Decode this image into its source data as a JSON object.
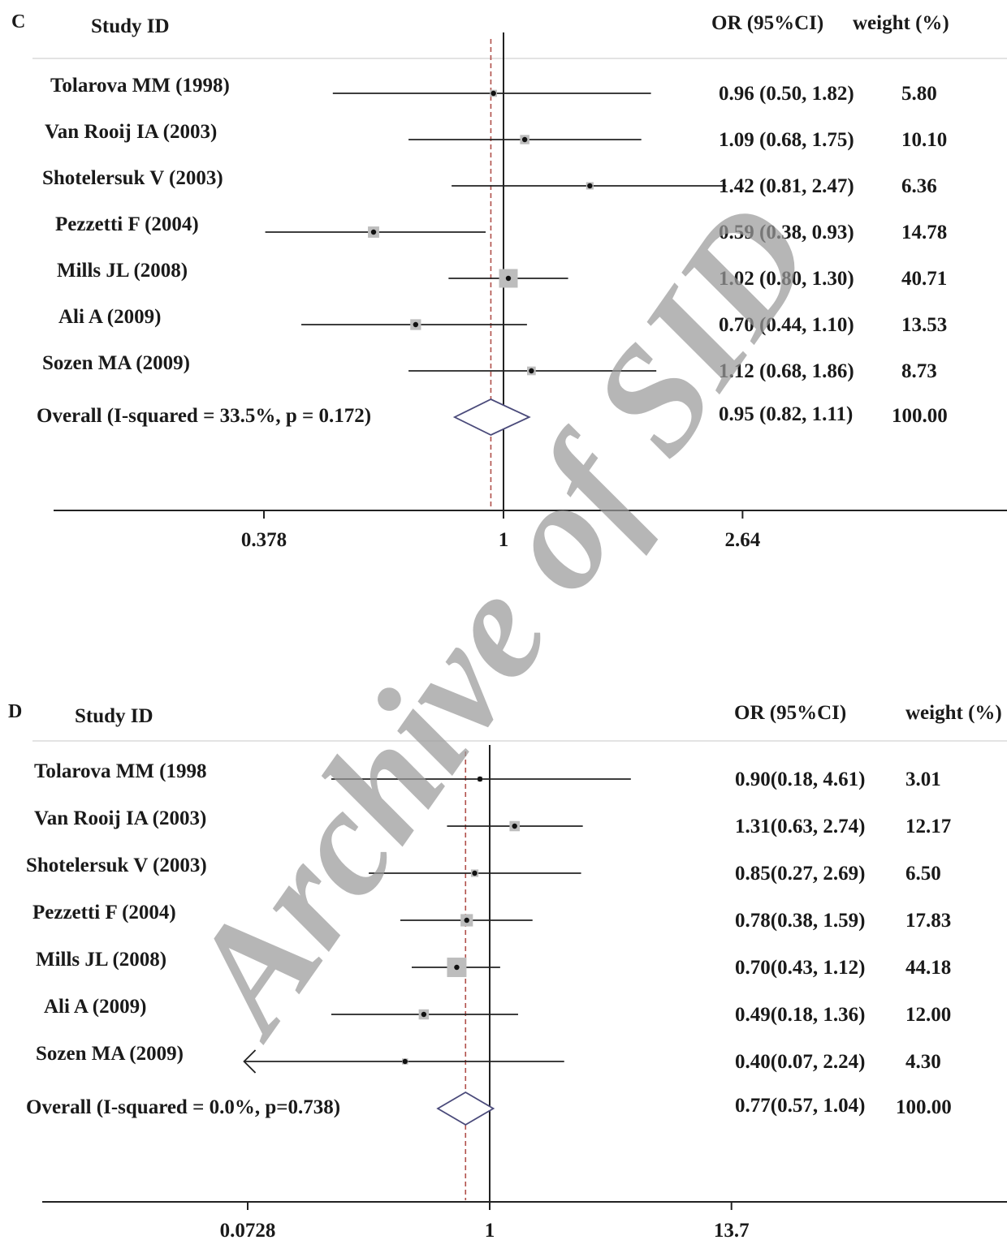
{
  "watermark": "Archive of SID",
  "chart_data": [
    {
      "type": "forest",
      "panel": "C",
      "headers": {
        "study": "Study ID",
        "or": "OR (95%CI)",
        "weight": "weight (%)"
      },
      "xscale": "log",
      "x_ticks": [
        {
          "value": 0.378,
          "label": "0.378"
        },
        {
          "value": 1,
          "label": "1"
        },
        {
          "value": 2.64,
          "label": "2.64"
        }
      ],
      "reference_line": 1,
      "pooled_line": 0.95,
      "rows": [
        {
          "study": "Tolarova MM (1998)",
          "or": 0.96,
          "lo": 0.5,
          "hi": 1.82,
          "or_text": "0.96 (0.50, 1.82)",
          "weight": "5.80"
        },
        {
          "study": "Van Rooij IA (2003)",
          "or": 1.09,
          "lo": 0.68,
          "hi": 1.75,
          "or_text": "1.09 (0.68, 1.75)",
          "weight": "10.10"
        },
        {
          "study": "Shotelersuk V (2003)",
          "or": 1.42,
          "lo": 0.81,
          "hi": 2.47,
          "or_text": "1.42 (0.81, 2.47)",
          "weight": "6.36"
        },
        {
          "study": "Pezzetti F (2004)",
          "or": 0.59,
          "lo": 0.38,
          "hi": 0.93,
          "or_text": "0.59 (0.38, 0.93)",
          "weight": "14.78"
        },
        {
          "study": "Mills JL (2008)",
          "or": 1.02,
          "lo": 0.8,
          "hi": 1.3,
          "or_text": "1.02 (0.80, 1.30)",
          "weight": "40.71"
        },
        {
          "study": "Ali A (2009)",
          "or": 0.7,
          "lo": 0.44,
          "hi": 1.1,
          "or_text": "0.70 (0.44, 1.10)",
          "weight": "13.53"
        },
        {
          "study": "Sozen MA (2009)",
          "or": 1.12,
          "lo": 0.68,
          "hi": 1.86,
          "or_text": "1.12 (0.68, 1.86)",
          "weight": "8.73"
        }
      ],
      "overall": {
        "label": "Overall (I-squared = 33.5%, p = 0.172)",
        "or": 0.95,
        "lo": 0.82,
        "hi": 1.11,
        "or_text": "0.95 (0.82, 1.11)",
        "weight": "100.00"
      }
    },
    {
      "type": "forest",
      "panel": "D",
      "headers": {
        "study": "Study ID",
        "or": "OR (95%CI)",
        "weight": "weight (%)"
      },
      "xscale": "log",
      "x_ticks": [
        {
          "value": 0.0728,
          "label": "0.0728"
        },
        {
          "value": 1,
          "label": "1"
        },
        {
          "value": 13.7,
          "label": "13.7"
        }
      ],
      "reference_line": 1,
      "pooled_line": 0.77,
      "rows": [
        {
          "study": "Tolarova MM (1998",
          "or": 0.9,
          "lo": 0.18,
          "hi": 4.61,
          "or_text": "0.90(0.18, 4.61)",
          "weight": "3.01"
        },
        {
          "study": "Van Rooij IA (2003)",
          "or": 1.31,
          "lo": 0.63,
          "hi": 2.74,
          "or_text": "1.31(0.63, 2.74)",
          "weight": "12.17"
        },
        {
          "study": "Shotelersuk V (2003)",
          "or": 0.85,
          "lo": 0.27,
          "hi": 2.69,
          "or_text": "0.85(0.27, 2.69)",
          "weight": "6.50"
        },
        {
          "study": "Pezzetti F (2004)",
          "or": 0.78,
          "lo": 0.38,
          "hi": 1.59,
          "or_text": "0.78(0.38, 1.59)",
          "weight": "17.83"
        },
        {
          "study": "Mills JL (2008)",
          "or": 0.7,
          "lo": 0.43,
          "hi": 1.12,
          "or_text": "0.70(0.43, 1.12)",
          "weight": "44.18"
        },
        {
          "study": "Ali A (2009)",
          "or": 0.49,
          "lo": 0.18,
          "hi": 1.36,
          "or_text": "0.49(0.18, 1.36)",
          "weight": "12.00"
        },
        {
          "study": "Sozen MA (2009)",
          "or": 0.4,
          "lo": 0.07,
          "hi": 2.24,
          "or_text": "0.40(0.07, 2.24)",
          "weight": "4.30",
          "lower_arrow": true
        }
      ],
      "overall": {
        "label": "Overall (I-squared = 0.0%, p=0.738)",
        "or": 0.77,
        "lo": 0.57,
        "hi": 1.04,
        "or_text": "0.77(0.57, 1.04)",
        "weight": "100.00"
      }
    }
  ]
}
